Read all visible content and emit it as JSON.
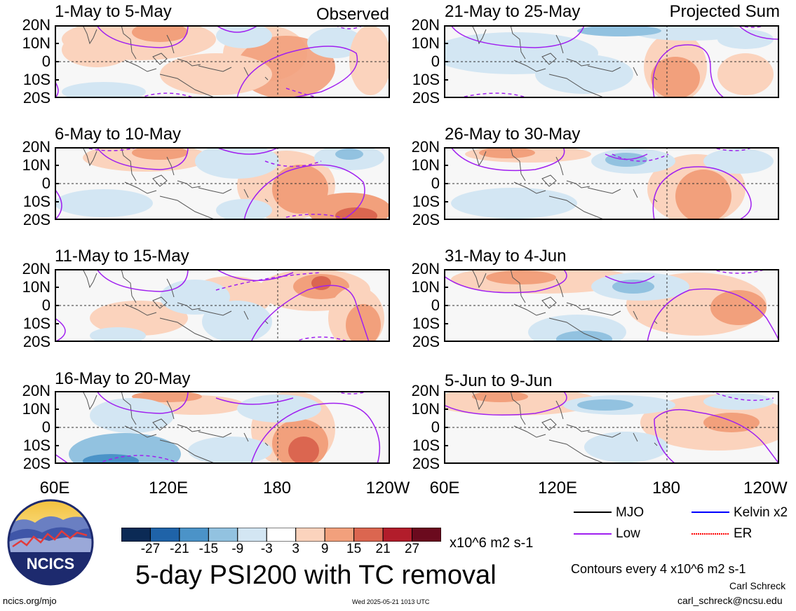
{
  "header": {
    "observed_label": "Observed",
    "projected_label": "Projected Sum"
  },
  "lat_labels": [
    "20N",
    "10N",
    "0",
    "10S",
    "20S"
  ],
  "lon_labels": [
    "60E",
    "120E",
    "180",
    "120W"
  ],
  "panels_left": [
    {
      "title": "1-May to 5-May"
    },
    {
      "title": "6-May to 10-May"
    },
    {
      "title": "11-May to 15-May"
    },
    {
      "title": "16-May to 20-May"
    }
  ],
  "panels_right": [
    {
      "title": "21-May to 25-May"
    },
    {
      "title": "26-May to 30-May"
    },
    {
      "title": "31-May to 4-Jun"
    },
    {
      "title": "5-Jun to 9-Jun"
    }
  ],
  "colorbar": {
    "ticks": [
      "-27",
      "-21",
      "-15",
      "-9",
      "-3",
      "3",
      "9",
      "15",
      "21",
      "27"
    ],
    "colors": [
      "#0b2a55",
      "#1f63a8",
      "#4b93c8",
      "#92c2e0",
      "#d3e6f3",
      "#ffffff",
      "#fbd3bd",
      "#f2a07c",
      "#db6650",
      "#b21d2b",
      "#6b0a1e"
    ],
    "units": "x10^6 m2 s-1"
  },
  "main_title": "5-day PSI200 with TC removal",
  "legend": {
    "items": [
      {
        "label": "MJO",
        "color": "#000000"
      },
      {
        "label": "Kelvin x2",
        "color": "#0000ff"
      },
      {
        "label": "Low",
        "color": "#a020f0"
      },
      {
        "label": "ER",
        "color": "#ff0000"
      }
    ],
    "contour_note": "Contours every 4 x10^6 m2 s-1"
  },
  "logo": {
    "text": "NCICS"
  },
  "footer": {
    "site": "ncics.org/mjo",
    "timestamp": "Wed 2025-05-21 1013 UTC",
    "author": "Carl Schreck",
    "email": "carl_schreck@ncsu.edu"
  },
  "chart_data": {
    "type": "heatmap",
    "title": "5-day PSI200 with TC removal",
    "units": "x10^6 m2 s-1",
    "x_range": [
      "60E",
      "120W"
    ],
    "y_range": [
      "20S",
      "20N"
    ],
    "x_ticks": [
      "60E",
      "120E",
      "180",
      "120W"
    ],
    "y_ticks": [
      "20N",
      "10N",
      "0",
      "10S",
      "20S"
    ],
    "color_levels": [
      -27,
      -21,
      -15,
      -9,
      -3,
      3,
      9,
      15,
      21,
      27
    ],
    "contour_interval": 4,
    "contour_series": [
      "MJO",
      "Kelvin x2",
      "Low",
      "ER"
    ],
    "panels": [
      {
        "period": "1-May to 5-May",
        "kind": "Observed"
      },
      {
        "period": "6-May to 10-May",
        "kind": "Observed"
      },
      {
        "period": "11-May to 15-May",
        "kind": "Observed"
      },
      {
        "period": "16-May to 20-May",
        "kind": "Observed"
      },
      {
        "period": "21-May to 25-May",
        "kind": "Projected Sum"
      },
      {
        "period": "26-May to 30-May",
        "kind": "Projected Sum"
      },
      {
        "period": "31-May to 4-Jun",
        "kind": "Projected Sum"
      },
      {
        "period": "5-Jun to 9-Jun",
        "kind": "Projected Sum"
      }
    ]
  }
}
